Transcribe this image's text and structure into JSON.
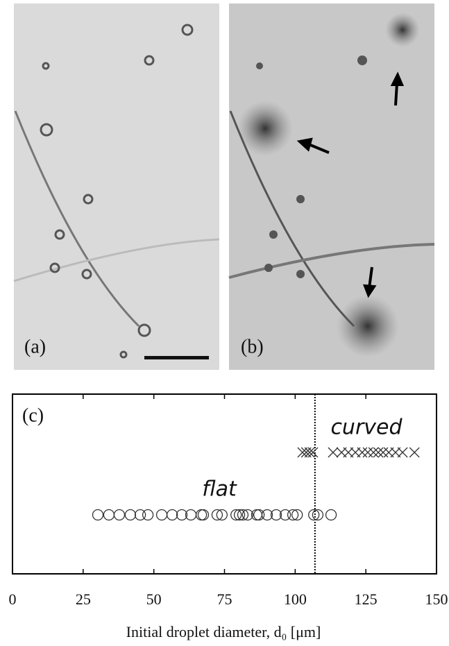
{
  "images": [
    {
      "label": "(a)"
    },
    {
      "label": "(b)"
    }
  ],
  "chart_data": {
    "type": "strip",
    "panel_label": "(c)",
    "xlabel": "Initial droplet diameter, d₀ [μm]",
    "xlim": [
      0,
      150
    ],
    "xticks": [
      0,
      25,
      50,
      75,
      100,
      125,
      150
    ],
    "threshold": 107,
    "series": [
      {
        "name": "flat",
        "marker": "circle",
        "color": "#333333",
        "values": [
          30.2,
          34.1,
          37.8,
          41.7,
          45.2,
          47.9,
          52.8,
          56.5,
          59.9,
          63.1,
          66.8,
          67.5,
          72.4,
          74.1,
          79.1,
          80.3,
          81.5,
          83.2,
          86.4,
          87.2,
          90.1,
          93.3,
          96.5,
          99.2,
          100.7,
          106.6,
          108.0,
          112.7
        ]
      },
      {
        "name": "curved",
        "marker": "cross",
        "color": "#333333",
        "values": [
          102.6,
          103.9,
          105.1,
          106.3,
          113.4,
          116.4,
          118.8,
          121.3,
          123.7,
          125.7,
          127.7,
          129.4,
          131.1,
          133.1,
          135.5,
          138.0,
          142.2
        ]
      }
    ]
  }
}
